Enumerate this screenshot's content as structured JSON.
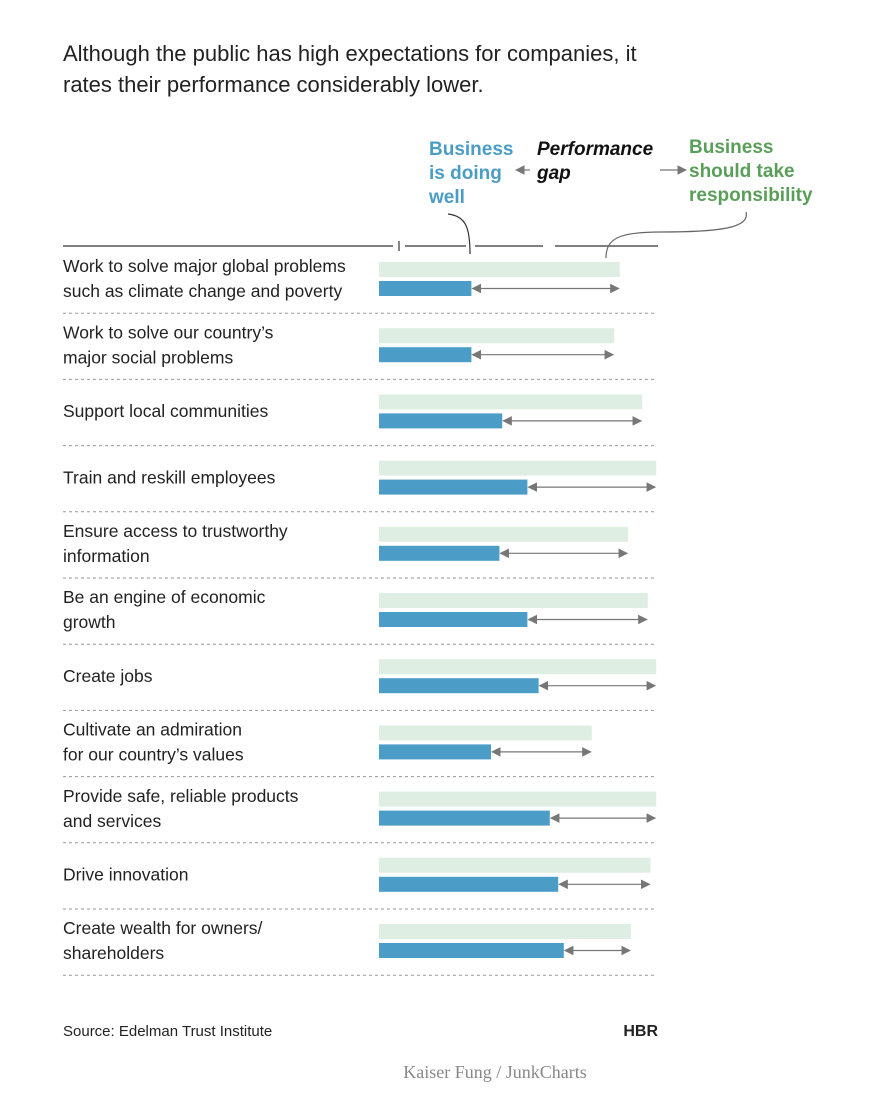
{
  "chart_data": {
    "type": "gap-bar",
    "title": "Although the public has high expectations for companies, it rates their performance considerably lower.",
    "annotation": "Performance gap",
    "categories": [
      [
        "Work to solve major global problems",
        "such as climate change and poverty"
      ],
      [
        "Work to solve our country’s",
        "major social problems"
      ],
      [
        "Support local communities"
      ],
      [
        "Train and reskill employees"
      ],
      [
        "Ensure access to trustworthy",
        "information"
      ],
      [
        "Be an engine of economic",
        "growth"
      ],
      [
        "Create jobs"
      ],
      [
        "Cultivate an admiration",
        "for our country’s values"
      ],
      [
        "Provide safe, reliable products",
        "and services"
      ],
      [
        "Drive innovation"
      ],
      [
        "Create wealth for owners/",
        "shareholders"
      ]
    ],
    "series": [
      {
        "name": "Business should take responsibility",
        "color": "#dfeee2",
        "label_color": "#5a9e5a",
        "values": [
          86,
          84,
          94,
          99,
          89,
          96,
          99,
          76,
          99,
          97,
          90
        ]
      },
      {
        "name": "Business is doing well",
        "color": "#4b9cc6",
        "label_color": "#4b9cc6",
        "values": [
          33,
          33,
          44,
          53,
          43,
          53,
          57,
          40,
          61,
          64,
          66
        ]
      }
    ],
    "xlim": [
      0,
      100
    ],
    "source": "Source: Edelman Trust Institute",
    "brand": "HBR",
    "credit": "Kaiser Fung / JunkCharts"
  }
}
